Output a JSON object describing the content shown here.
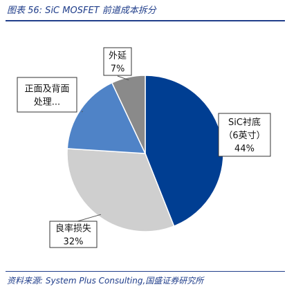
{
  "figure_label": "图表 56:  SiC MOSFET 前道成本拆分",
  "source_line": "资料来源:  System Plus Consulting,国盛证券研究所",
  "chart_data": {
    "type": "pie",
    "title": "",
    "start_angle_deg": 0,
    "direction": "clockwise",
    "slices": [
      {
        "name": "SiC衬底（6英寸）",
        "value": 44,
        "color": "#003e92",
        "label_lines": [
          "SiC衬底",
          "（6英寸）",
          "44%"
        ]
      },
      {
        "name": "良率损失",
        "value": 32,
        "color": "#cfcfcf",
        "label_lines": [
          "良率损失",
          "32%"
        ]
      },
      {
        "name": "正面及背面处理...",
        "value": 17,
        "color": "#4f83c7",
        "label_lines": [
          "正面及背面",
          "处理..."
        ]
      },
      {
        "name": "外延",
        "value": 7,
        "color": "#8a8a8a",
        "label_lines": [
          "外延",
          "7%"
        ]
      }
    ]
  }
}
